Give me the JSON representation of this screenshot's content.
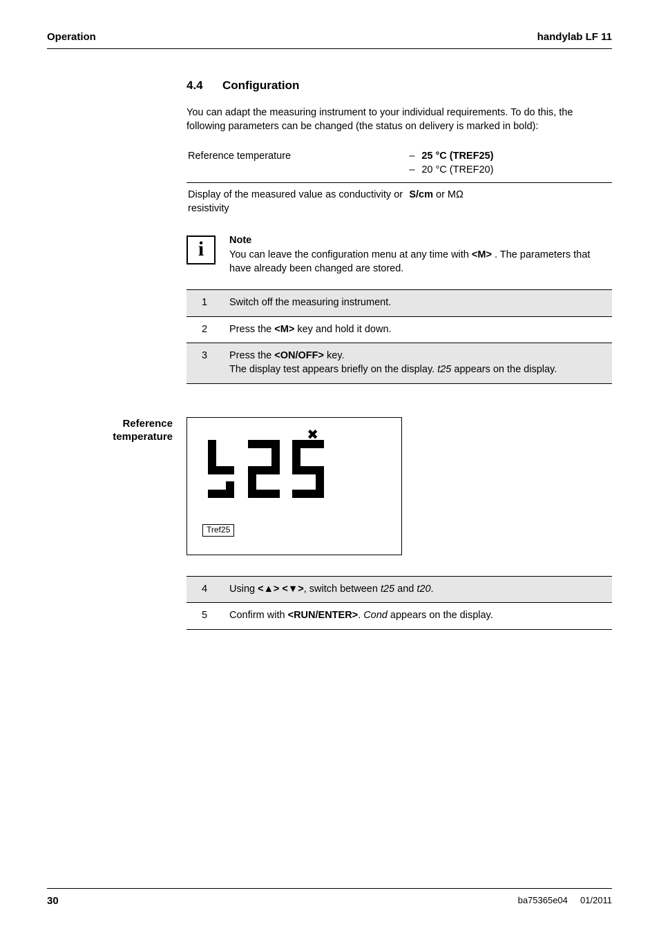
{
  "header": {
    "left": "Operation",
    "right": "handylab LF 11"
  },
  "section": {
    "number": "4.4",
    "title": "Configuration"
  },
  "intro": "You can adapt the measuring instrument to your individual requirements. To do this, the following parameters can be changed (the status on delivery is marked in bold):",
  "param_table": {
    "rows": [
      {
        "left": "Reference temperature",
        "options": [
          {
            "label": "25 °C (TREF25)",
            "bold": true
          },
          {
            "label": "20 °C (TREF20)",
            "bold": false
          }
        ]
      },
      {
        "left": "Display of the measured value as conductivity or resistivity",
        "right_html": "<b>S/cm</b> or MΩ"
      }
    ]
  },
  "note": {
    "heading": "Note",
    "body_html": "You can leave the configuration menu at any time with <b>&lt;M&gt;</b> . The parameters that have already been changed are stored."
  },
  "steps1": [
    {
      "n": "1",
      "html": "Switch off the measuring instrument.",
      "shade": true
    },
    {
      "n": "2",
      "html": "Press the <b>&lt;M&gt;</b> key and hold it down.",
      "shade": false
    },
    {
      "n": "3",
      "html": "Press the <b>&lt;ON/OFF&gt;</b> key.<br>The display test appears briefly on the display. <i>t25</i> appears on the display.",
      "shade": true
    }
  ],
  "figure": {
    "side_label_line1": "Reference",
    "side_label_line2": "temperature",
    "tref_label": "Tref25"
  },
  "steps2": [
    {
      "n": "4",
      "html": "Using <b>&lt;▲&gt; &lt;▼&gt;</b>, switch between <i>t25</i> and <i>t20</i>.",
      "shade": true
    },
    {
      "n": "5",
      "html": "Confirm with <b>&lt;RUN/ENTER&gt;</b>. <i>Cond</i> appears on the display.",
      "shade": false
    }
  ],
  "footer": {
    "page": "30",
    "doc": "ba75365e04",
    "date": "01/2011"
  }
}
